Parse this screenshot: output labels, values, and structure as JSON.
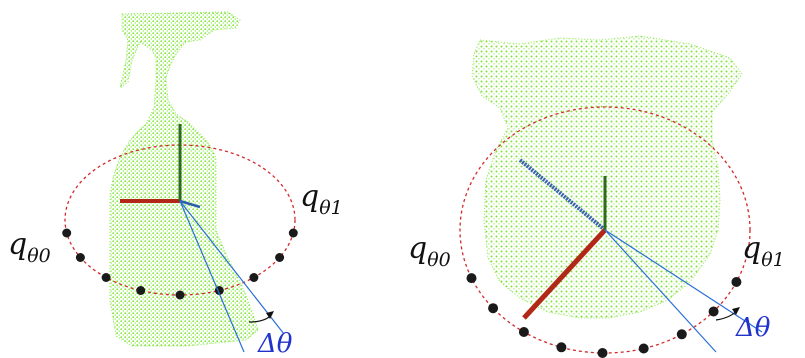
{
  "colors": {
    "point_cloud": "#7fe23a",
    "circle": "#d22a2a",
    "marker": "#1a1a1a",
    "ray": "#2a6fd6",
    "angle_label": "#2233cc",
    "axis_red": "#b22818",
    "axis_green": "#2e6b1a",
    "axis_blue": "#2a5fa8"
  },
  "panels": [
    {
      "object": "spray-bottle",
      "label_left": {
        "base": "q",
        "sub": "θ0"
      },
      "label_right": {
        "base": "q",
        "sub": "θ1"
      },
      "angle_label": "Δθ",
      "marker_count": 9
    },
    {
      "object": "mug",
      "label_left": {
        "base": "q",
        "sub": "θ0"
      },
      "label_right": {
        "base": "q",
        "sub": "θ1"
      },
      "angle_label": "Δθ",
      "marker_count": 9
    }
  ]
}
